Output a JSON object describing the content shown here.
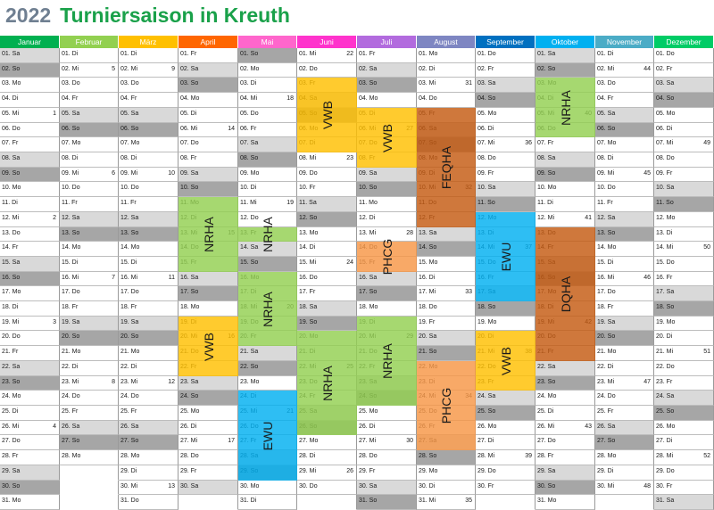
{
  "title": {
    "year": "2022",
    "text": "Turniersaison in Kreuth"
  },
  "colors": {
    "header": [
      "#00b050",
      "#92d050",
      "#ffc000",
      "#ff6600",
      "#ff66cc",
      "#ff33cc",
      "#b26bde",
      "#7e86c2",
      "#0070c0",
      "#00b0f0",
      "#4bacc6",
      "#00cc66"
    ],
    "events": {
      "NRHA": "#92d050",
      "VWB": "#ffc000",
      "PHCG": "#f79646",
      "FEQHA": "#c55a11",
      "EWU": "#00b0f0",
      "DQHA": "#c55a11"
    }
  },
  "months": [
    {
      "name": "Januar",
      "first_weekday": 5,
      "days": 31,
      "first_kw": 52
    },
    {
      "name": "Februar",
      "first_weekday": 1,
      "days": 28,
      "first_kw": 5
    },
    {
      "name": "März",
      "first_weekday": 1,
      "days": 31,
      "first_kw": 9
    },
    {
      "name": "April",
      "first_weekday": 4,
      "days": 30,
      "first_kw": 13
    },
    {
      "name": "Mai",
      "first_weekday": 6,
      "days": 31,
      "first_kw": 17
    },
    {
      "name": "Juni",
      "first_weekday": 2,
      "days": 30,
      "first_kw": 22
    },
    {
      "name": "Juli",
      "first_weekday": 4,
      "days": 31,
      "first_kw": 26
    },
    {
      "name": "August",
      "first_weekday": 0,
      "days": 31,
      "first_kw": 31
    },
    {
      "name": "September",
      "first_weekday": 3,
      "days": 30,
      "first_kw": 35
    },
    {
      "name": "Oktober",
      "first_weekday": 5,
      "days": 31,
      "first_kw": 39
    },
    {
      "name": "November",
      "first_weekday": 1,
      "days": 30,
      "first_kw": 44
    },
    {
      "name": "Dezember",
      "first_weekday": 3,
      "days": 31,
      "first_kw": 48
    }
  ],
  "weekdays": [
    "Mo",
    "Di",
    "Mi",
    "Do",
    "Fr",
    "Sa",
    "So"
  ],
  "events": [
    {
      "label": "NRHA",
      "month": 3,
      "start": 11,
      "end": 15
    },
    {
      "label": "VWB",
      "month": 3,
      "start": 19,
      "end": 22
    },
    {
      "label": "NRHA",
      "month": 4,
      "start": 13,
      "end": 13
    },
    {
      "label": "NRHA",
      "month": 4,
      "start": 16,
      "end": 20
    },
    {
      "label": "EWU",
      "month": 4,
      "start": 24,
      "end": 29
    },
    {
      "label": "VWB",
      "month": 5,
      "start": 3,
      "end": 7
    },
    {
      "label": "NRHA",
      "month": 5,
      "start": 20,
      "end": 26
    },
    {
      "label": "VWB",
      "month": 6,
      "start": 5,
      "end": 8
    },
    {
      "label": "PHCG",
      "month": 6,
      "start": 14,
      "end": 15
    },
    {
      "label": "NRHA",
      "month": 6,
      "start": 19,
      "end": 24
    },
    {
      "label": "FEQHA",
      "month": 7,
      "start": 5,
      "end": 12
    },
    {
      "label": "PHCG",
      "month": 7,
      "start": 22,
      "end": 27
    },
    {
      "label": "EWU",
      "month": 8,
      "start": 12,
      "end": 17
    },
    {
      "label": "VWB",
      "month": 8,
      "start": 20,
      "end": 23
    },
    {
      "label": "NRHA",
      "month": 9,
      "start": 3,
      "end": 6
    },
    {
      "label": "DQHA",
      "month": 9,
      "start": 13,
      "end": 21
    }
  ]
}
